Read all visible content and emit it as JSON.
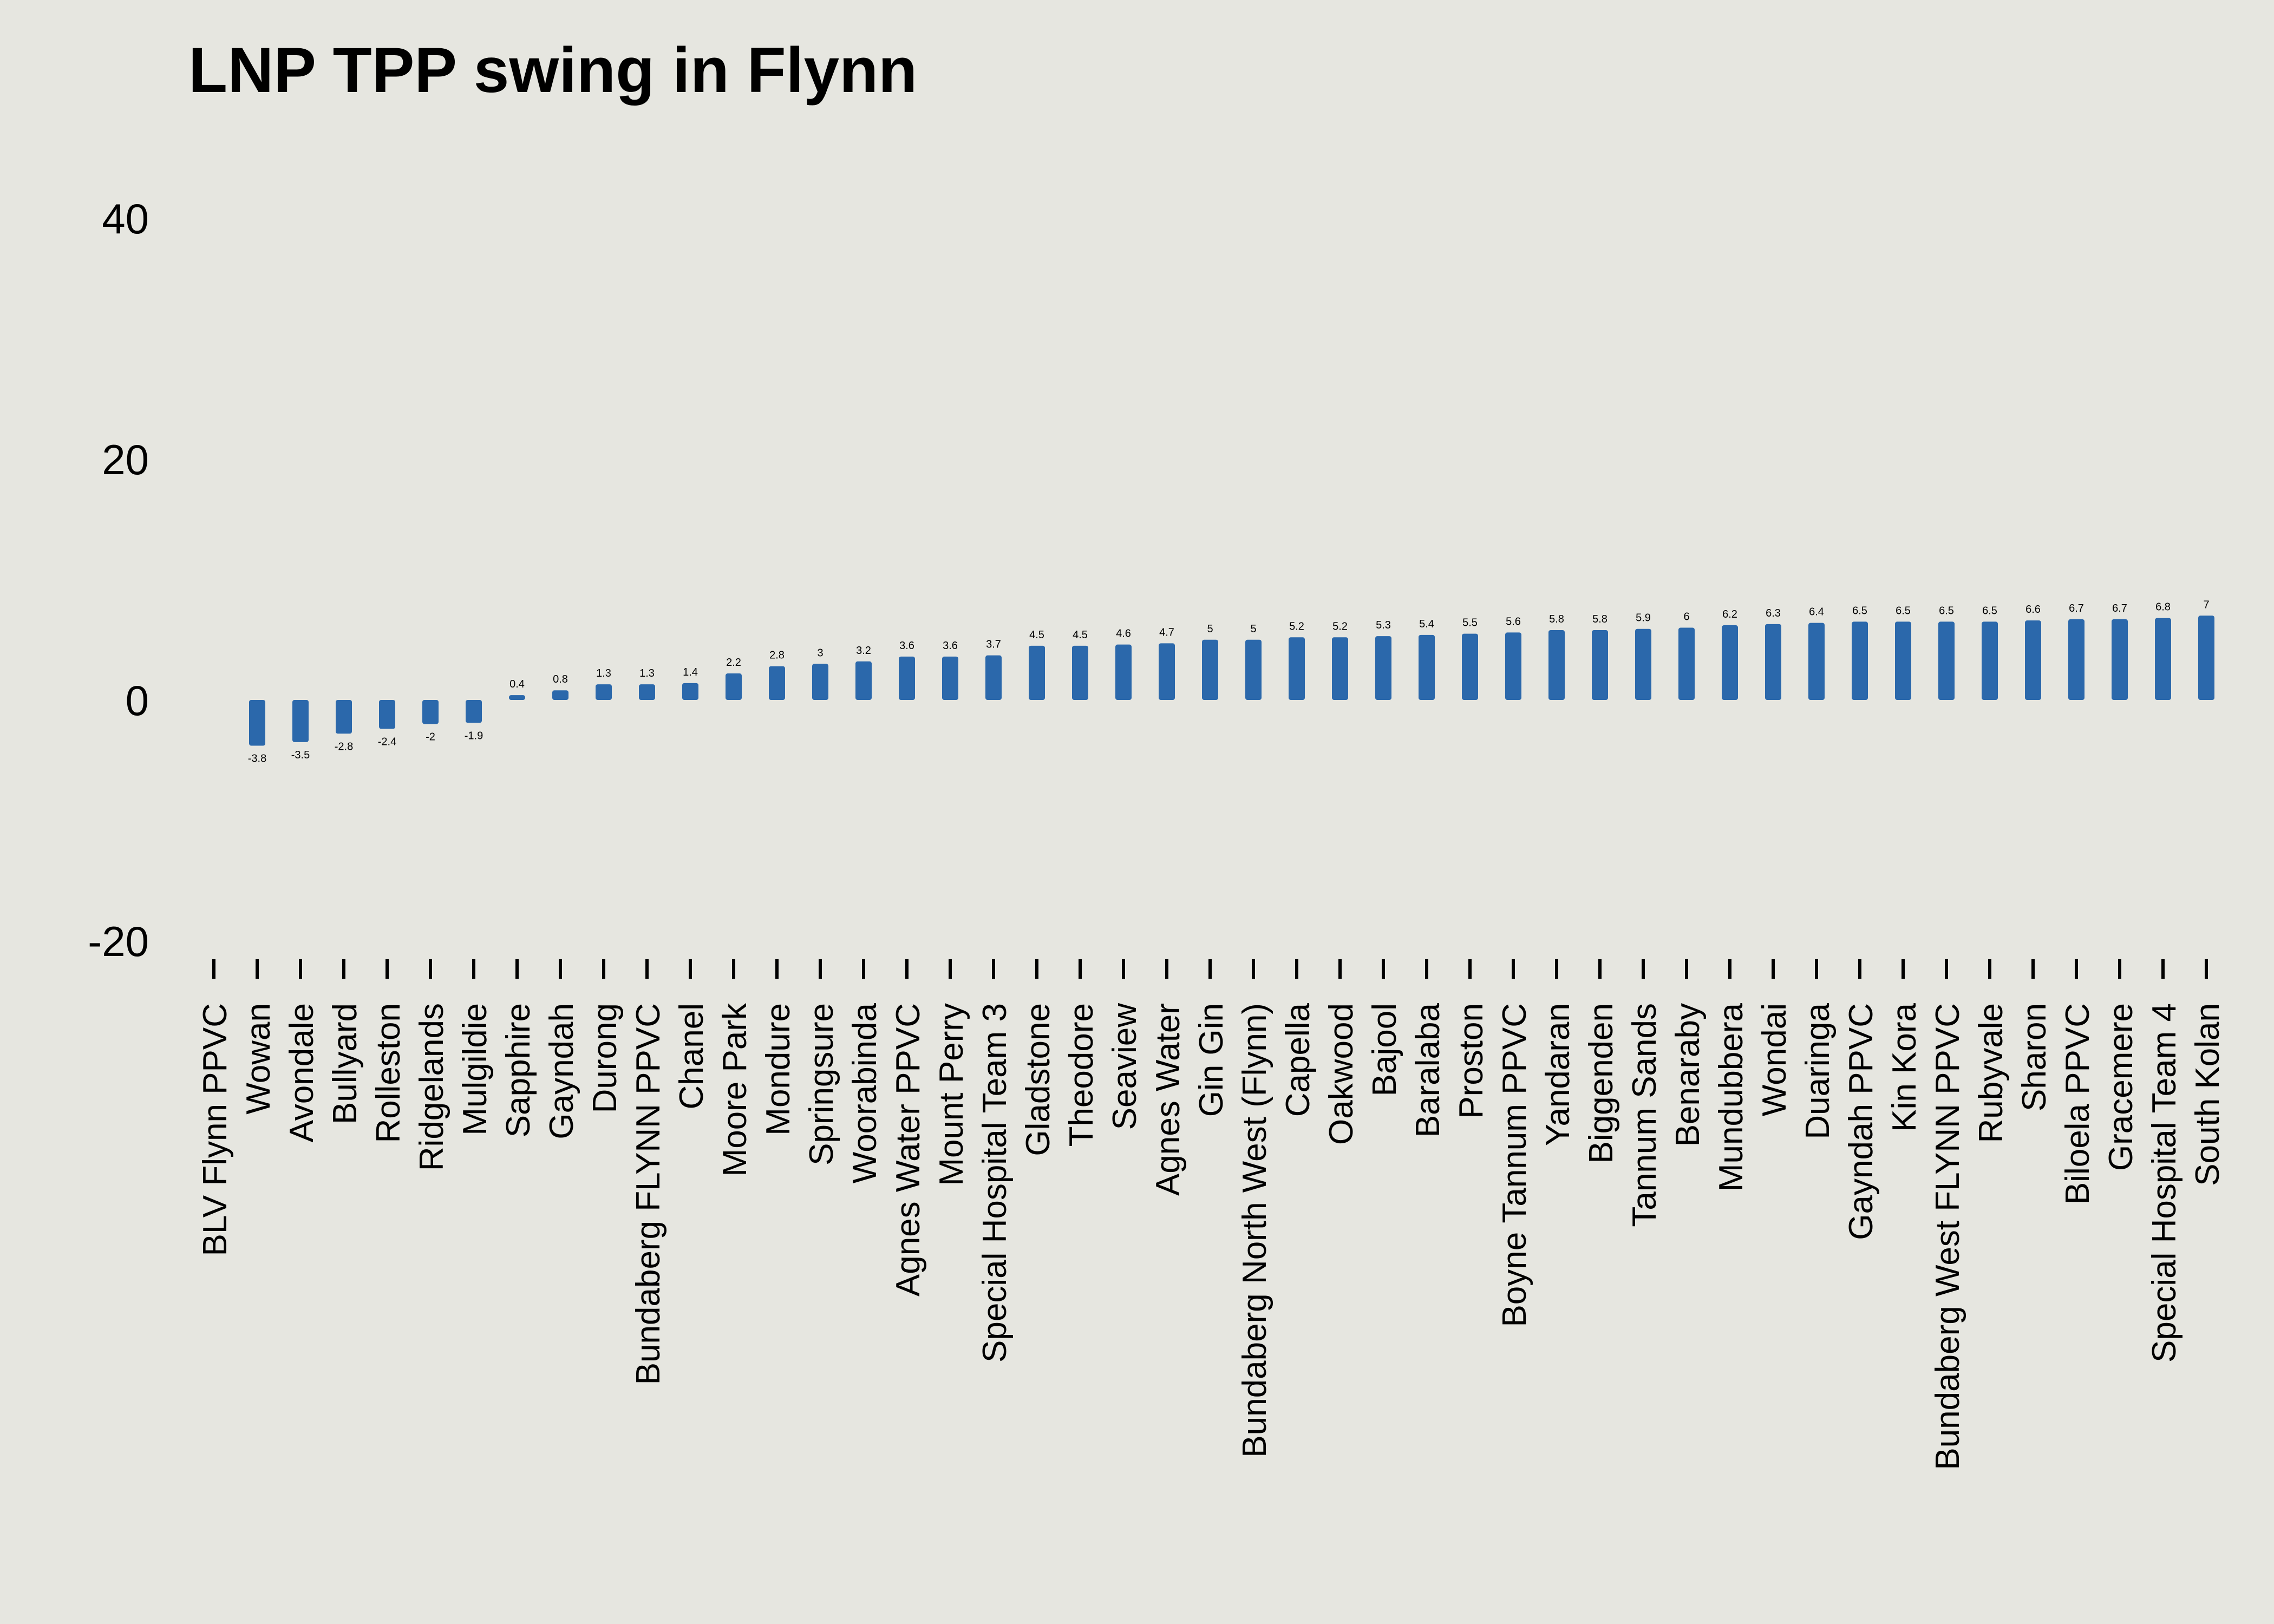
{
  "chart_data": {
    "type": "bar",
    "title": "LNP TPP swing in Flynn",
    "xlabel": "",
    "ylabel": "",
    "ylim": [
      -20,
      40
    ],
    "yticks": [
      -20,
      0,
      20,
      40
    ],
    "grid": false,
    "legend": "none",
    "bar_color": "#2b68ab",
    "background_color": "#e6e6e0",
    "categories": [
      "BLV Flynn PPVC",
      "Wowan",
      "Avondale",
      "Bullyard",
      "Rolleston",
      "Ridgelands",
      "Mulgildie",
      "Sapphire",
      "Gayndah",
      "Durong",
      "Bundaberg FLYNN PPVC",
      "Chanel",
      "Moore Park",
      "Mondure",
      "Springsure",
      "Woorabinda",
      "Agnes Water PPVC",
      "Mount Perry",
      "Special Hospital Team 3",
      "Gladstone",
      "Theodore",
      "Seaview",
      "Agnes Water",
      "Gin Gin",
      "Bundaberg North West (Flynn)",
      "Capella",
      "Oakwood",
      "Bajool",
      "Baralaba",
      "Proston",
      "Boyne Tannum PPVC",
      "Yandaran",
      "Biggenden",
      "Tannum Sands",
      "Benaraby",
      "Mundubbera",
      "Wondai",
      "Duaringa",
      "Gayndah PPVC",
      "Kin Kora",
      "Bundaberg West FLYNN PPVC",
      "Rubyvale",
      "Sharon",
      "Biloela PPVC",
      "Gracemere",
      "Special Hospital Team 4",
      "South Kolan"
    ],
    "values": [
      null,
      -3.8,
      -3.5,
      -2.8,
      -2.4,
      -2,
      -1.9,
      0.4,
      0.8,
      1.3,
      1.3,
      1.4,
      2.2,
      2.8,
      3,
      3.2,
      3.6,
      3.6,
      3.7,
      4.5,
      4.5,
      4.6,
      4.7,
      5,
      5,
      5.2,
      5.2,
      5.3,
      5.4,
      5.5,
      5.6,
      5.8,
      5.8,
      5.9,
      6,
      6.2,
      6.3,
      6.4,
      6.5,
      6.5,
      6.5,
      6.5,
      6.6,
      6.7,
      6.7,
      6.8,
      7
    ]
  }
}
